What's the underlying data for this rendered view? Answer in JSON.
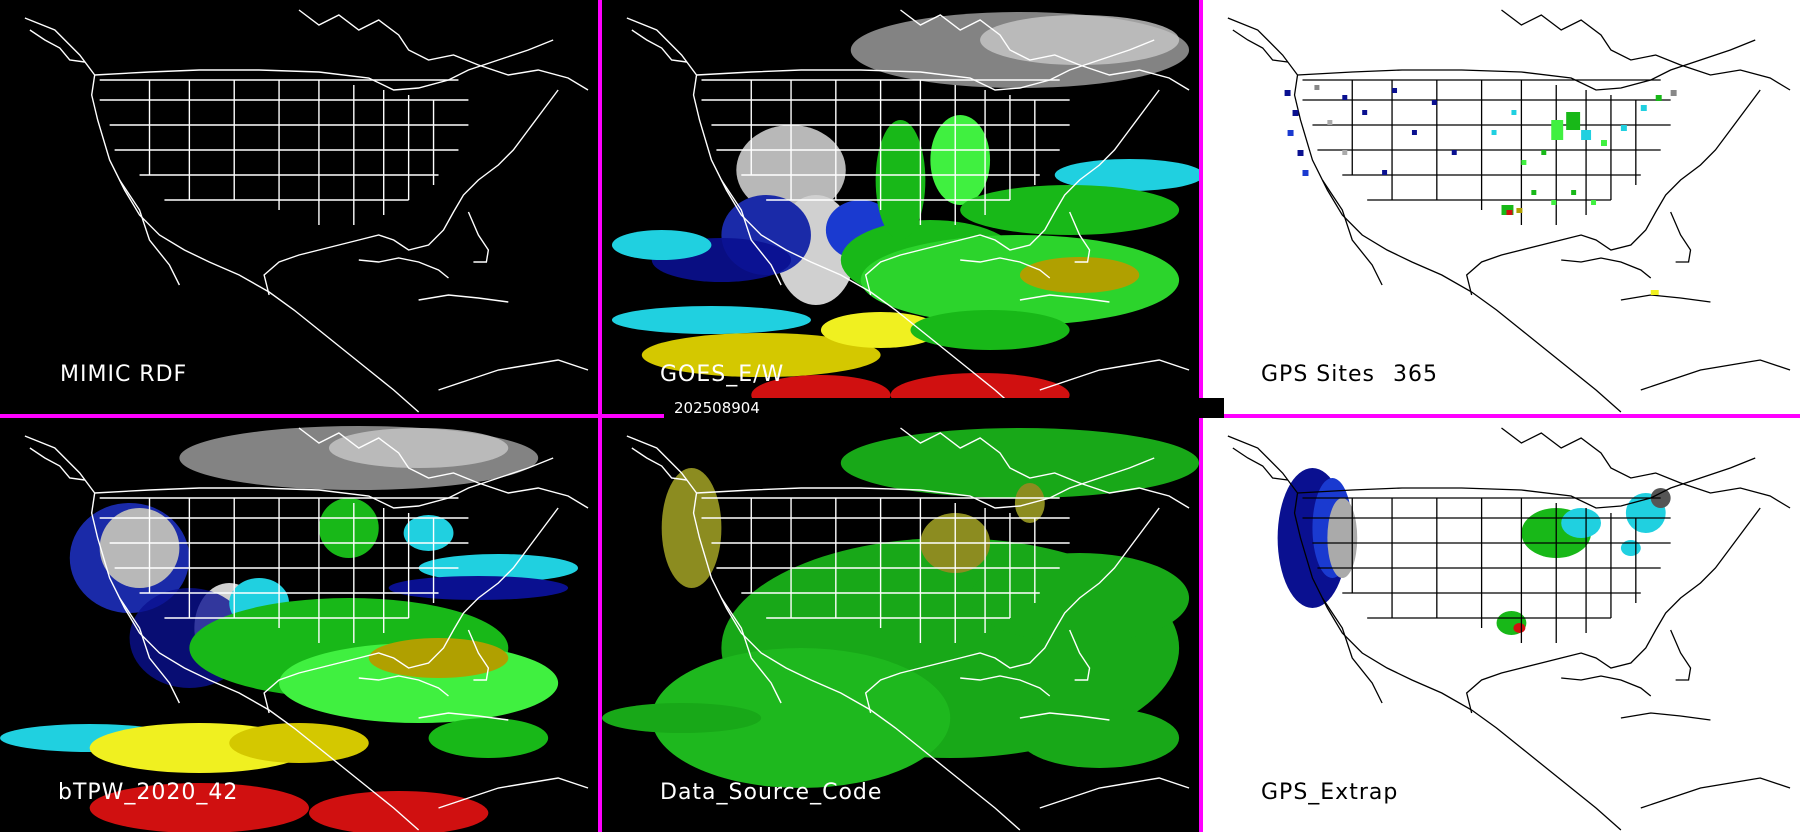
{
  "timestamp": "202508904",
  "panels": [
    {
      "label": "MIMIC RDF"
    },
    {
      "label": "GOES_E/W"
    },
    {
      "label": "GPS Sites",
      "count": "365"
    },
    {
      "label": "bTPW_2020_42"
    },
    {
      "label": "Data_Source_Code"
    },
    {
      "label": "GPS_Extrap"
    }
  ],
  "colors": {
    "divider": "#ff00ff",
    "map_lines_dark": "#ffffff",
    "map_lines_light": "#000000",
    "tpw_scale": [
      "#c8c8c8",
      "#808080",
      "#0a1090",
      "#1a3ad0",
      "#20d0e0",
      "#18b818",
      "#40f040",
      "#b0a000",
      "#f0f020",
      "#d01010"
    ],
    "source_codes": [
      "#18a818",
      "#8c8c20"
    ]
  },
  "icons": [
    "continental-outline",
    "state-boundaries",
    "gps-site-markers"
  ]
}
